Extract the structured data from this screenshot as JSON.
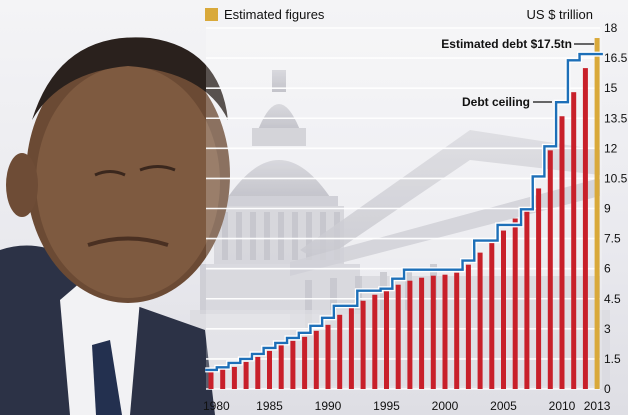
{
  "chart_data": {
    "type": "bar",
    "title": "",
    "xlabel": "",
    "ylabel": "US $ trillion",
    "ylim": [
      0,
      18
    ],
    "yticks": [
      "0",
      "1.5",
      "3",
      "4.5",
      "6",
      "7.5",
      "9",
      "10.5",
      "12",
      "13.5",
      "15",
      "16.5",
      "18"
    ],
    "xticks": [
      "1980",
      "1985",
      "1990",
      "1995",
      "2000",
      "2005",
      "2010",
      "2013"
    ],
    "legend": {
      "label": "Estimated figures",
      "color": "#d9a93a",
      "position": "top-left"
    },
    "categories": [
      1980,
      1981,
      1982,
      1983,
      1984,
      1985,
      1986,
      1987,
      1988,
      1989,
      1990,
      1991,
      1992,
      1993,
      1994,
      1995,
      1996,
      1997,
      1998,
      1999,
      2000,
      2001,
      2002,
      2003,
      2004,
      2005,
      2006,
      2007,
      2008,
      2009,
      2010,
      2011,
      2012,
      2013
    ],
    "series": [
      {
        "kind": "bars",
        "color": "#c8202a",
        "values": [
          0.9,
          1.0,
          1.1,
          1.35,
          1.6,
          1.9,
          2.2,
          2.4,
          2.6,
          2.9,
          3.2,
          3.7,
          4.1,
          4.4,
          4.7,
          4.95,
          5.2,
          5.4,
          5.55,
          5.65,
          5.7,
          5.8,
          6.2,
          6.8,
          7.4,
          7.9,
          8.5,
          9.0,
          10.0,
          11.9,
          13.6,
          14.8,
          16.0,
          17.5
        ],
        "estimated_from": 2013,
        "estimated_color": "#d9a93a"
      },
      {
        "kind": "step",
        "color": "#1d6fb8",
        "values": [
          0.95,
          1.08,
          1.3,
          1.5,
          1.75,
          2.05,
          2.3,
          2.55,
          2.8,
          3.15,
          3.55,
          4.15,
          4.15,
          4.9,
          4.9,
          5.0,
          5.5,
          5.95,
          5.95,
          5.95,
          5.95,
          5.95,
          6.4,
          7.4,
          7.4,
          8.18,
          8.18,
          8.96,
          10.6,
          12.1,
          14.3,
          16.39,
          16.7,
          16.7
        ]
      }
    ],
    "annotations": [
      {
        "text": "Estimated debt $17.5tn",
        "target_year": 2013,
        "target_value": 17.2
      },
      {
        "text": "Debt ceiling",
        "target_year": 2010,
        "target_value": 14.3
      }
    ]
  }
}
